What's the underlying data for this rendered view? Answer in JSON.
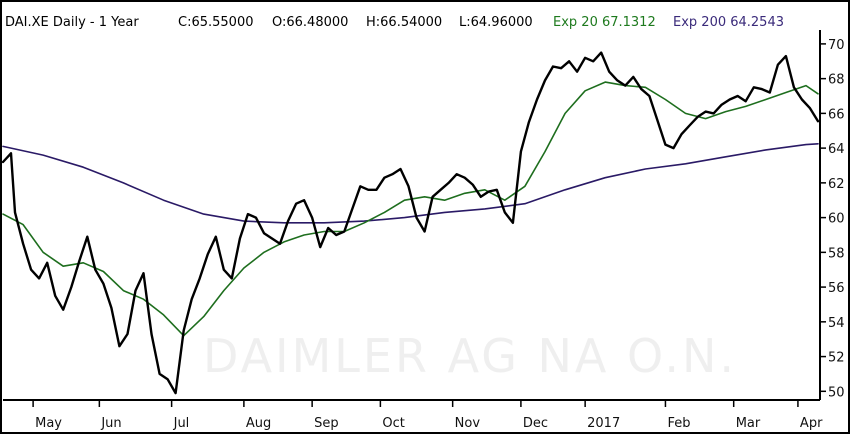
{
  "header": {
    "symbol": "DAI.XE Daily -  1 Year",
    "close": "C:65.55000",
    "open": "O:66.48000",
    "high": "H:66.54000",
    "low": "L:64.96000",
    "ema20_label": "Exp 20 67.1312",
    "ema200_label": "Exp 200 64.2543"
  },
  "watermark": "DAIMLER AG NA O.N.",
  "colors": {
    "price": "#000000",
    "ema20": "#1e6e1e",
    "ema200": "#2a1a66",
    "background": "#ffffff",
    "frame": "#000000",
    "ema20_text": "#1e7a1e",
    "ema200_text": "#3a2a7a"
  },
  "chart_data": {
    "type": "line",
    "title": "DAI.XE Daily -  1 Year",
    "ylim": [
      49.5,
      70.8
    ],
    "x_tick_labels": [
      "May",
      "Jun",
      "Jul",
      "Aug",
      "Sep",
      "Oct",
      "Nov",
      "Dec",
      "2017",
      "Feb",
      "Mar",
      "Apr"
    ],
    "x_tick_positions": [
      0.075,
      0.24,
      0.42,
      0.6,
      0.77,
      0.94,
      1.12,
      1.29,
      1.45,
      1.65,
      1.82,
      1.98
    ],
    "y_ticks": [
      50,
      52,
      54,
      56,
      58,
      60,
      62,
      64,
      66,
      68,
      70
    ],
    "y_axis_position": "right",
    "grid": false,
    "series": [
      {
        "name": "DAI.XE",
        "style": "price",
        "x": [
          0,
          0.02,
          0.03,
          0.05,
          0.07,
          0.09,
          0.11,
          0.13,
          0.15,
          0.17,
          0.19,
          0.21,
          0.23,
          0.25,
          0.27,
          0.29,
          0.31,
          0.33,
          0.35,
          0.37,
          0.39,
          0.41,
          0.43,
          0.45,
          0.47,
          0.49,
          0.51,
          0.53,
          0.55,
          0.57,
          0.59,
          0.61,
          0.63,
          0.65,
          0.67,
          0.69,
          0.71,
          0.73,
          0.75,
          0.77,
          0.79,
          0.81,
          0.83,
          0.85,
          0.87,
          0.89,
          0.91,
          0.93,
          0.95,
          0.97,
          0.99,
          1.01,
          1.03,
          1.05,
          1.07,
          1.09,
          1.11,
          1.13,
          1.15,
          1.17,
          1.19,
          1.21,
          1.23,
          1.25,
          1.27,
          1.29,
          1.31,
          1.33,
          1.35,
          1.37,
          1.39,
          1.41,
          1.43,
          1.45,
          1.47,
          1.49,
          1.51,
          1.53,
          1.55,
          1.57,
          1.59,
          1.61,
          1.63,
          1.65,
          1.67,
          1.69,
          1.71,
          1.73,
          1.75,
          1.77,
          1.79,
          1.81,
          1.83,
          1.85,
          1.87,
          1.89,
          1.91,
          1.93,
          1.95,
          1.97,
          1.99,
          2.01,
          2.03
        ],
        "values": [
          63.2,
          63.7,
          60.3,
          58.5,
          57.0,
          56.5,
          57.4,
          55.5,
          54.7,
          56.0,
          57.5,
          58.9,
          57.0,
          56.2,
          54.8,
          52.6,
          53.3,
          55.8,
          56.8,
          53.3,
          51.0,
          50.7,
          49.9,
          53.5,
          55.3,
          56.5,
          57.9,
          58.9,
          57.0,
          56.5,
          58.8,
          60.2,
          60.0,
          59.1,
          58.8,
          58.5,
          59.8,
          60.8,
          61.0,
          60.0,
          58.3,
          59.4,
          59.0,
          59.2,
          60.5,
          61.8,
          61.6,
          61.6,
          62.3,
          62.5,
          62.8,
          61.8,
          60.0,
          59.2,
          61.2,
          61.6,
          62.0,
          62.5,
          62.3,
          61.9,
          61.2,
          61.5,
          61.6,
          60.3,
          59.7,
          63.8,
          65.5,
          66.8,
          67.9,
          68.7,
          68.6,
          69.0,
          68.4,
          69.2,
          69.0,
          69.5,
          68.4,
          67.9,
          67.6,
          68.1,
          67.4,
          67.0,
          65.6,
          64.2,
          64.0,
          64.8,
          65.3,
          65.8,
          66.1,
          66.0,
          66.5,
          66.8,
          67.0,
          66.7,
          67.5,
          67.4,
          67.2,
          68.8,
          69.3,
          67.5,
          66.8,
          66.3,
          65.55
        ]
      },
      {
        "name": "Exp 20",
        "style": "ema20",
        "x": [
          0,
          0.05,
          0.1,
          0.15,
          0.2,
          0.25,
          0.3,
          0.35,
          0.4,
          0.45,
          0.5,
          0.55,
          0.6,
          0.65,
          0.7,
          0.75,
          0.8,
          0.85,
          0.9,
          0.95,
          1.0,
          1.05,
          1.1,
          1.15,
          1.2,
          1.25,
          1.3,
          1.35,
          1.4,
          1.45,
          1.5,
          1.55,
          1.6,
          1.65,
          1.7,
          1.75,
          1.8,
          1.85,
          1.9,
          1.95,
          2.0,
          2.03
        ],
        "values": [
          60.2,
          59.6,
          58.0,
          57.2,
          57.4,
          56.9,
          55.8,
          55.3,
          54.4,
          53.2,
          54.3,
          55.8,
          57.1,
          58.0,
          58.6,
          59.0,
          59.2,
          59.2,
          59.7,
          60.3,
          61.0,
          61.2,
          61.0,
          61.4,
          61.6,
          61.0,
          61.8,
          63.8,
          66.0,
          67.3,
          67.8,
          67.6,
          67.5,
          66.8,
          66.0,
          65.7,
          66.1,
          66.4,
          66.8,
          67.2,
          67.6,
          67.13
        ]
      },
      {
        "name": "Exp 200",
        "style": "ema200",
        "x": [
          0,
          0.1,
          0.2,
          0.3,
          0.4,
          0.5,
          0.6,
          0.7,
          0.8,
          0.9,
          1.0,
          1.1,
          1.2,
          1.3,
          1.4,
          1.5,
          1.6,
          1.7,
          1.8,
          1.9,
          2.0,
          2.03
        ],
        "values": [
          64.1,
          63.6,
          62.9,
          62.0,
          61.0,
          60.2,
          59.8,
          59.7,
          59.7,
          59.8,
          60.0,
          60.3,
          60.5,
          60.8,
          61.6,
          62.3,
          62.8,
          63.1,
          63.5,
          63.9,
          64.2,
          64.25
        ]
      }
    ]
  }
}
